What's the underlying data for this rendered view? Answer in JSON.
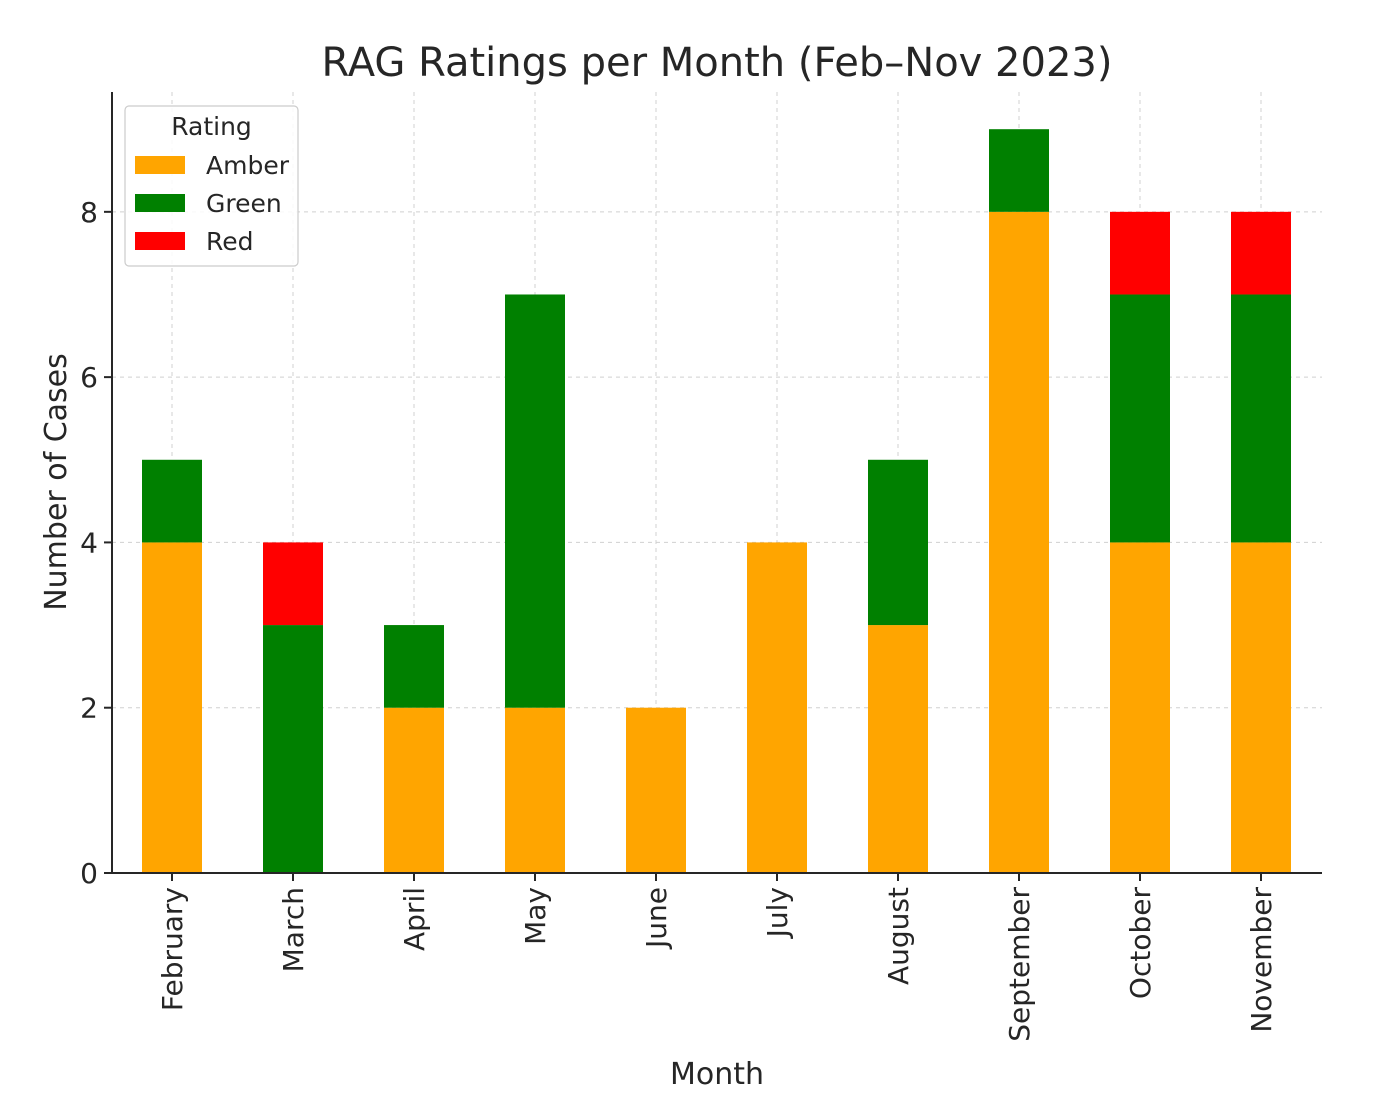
{
  "chart_data": {
    "type": "bar",
    "stacked": true,
    "title": "RAG Ratings per Month (Feb–Nov 2023)",
    "xlabel": "Month",
    "ylabel": "Number of Cases",
    "categories": [
      "February",
      "March",
      "April",
      "May",
      "June",
      "July",
      "August",
      "September",
      "October",
      "November"
    ],
    "series": [
      {
        "name": "Amber",
        "color": "#FFA500",
        "values": [
          4,
          0,
          2,
          2,
          2,
          4,
          3,
          8,
          4,
          4
        ]
      },
      {
        "name": "Green",
        "color": "#008000",
        "values": [
          1,
          3,
          1,
          5,
          0,
          0,
          2,
          1,
          3,
          3
        ]
      },
      {
        "name": "Red",
        "color": "#FF0000",
        "values": [
          0,
          1,
          0,
          0,
          0,
          0,
          0,
          0,
          1,
          1
        ]
      }
    ],
    "ylim": [
      0,
      9.45
    ],
    "yticks": [
      0,
      2,
      4,
      6,
      8
    ],
    "grid": true,
    "legend": {
      "title": "Rating",
      "position": "top-left"
    }
  }
}
